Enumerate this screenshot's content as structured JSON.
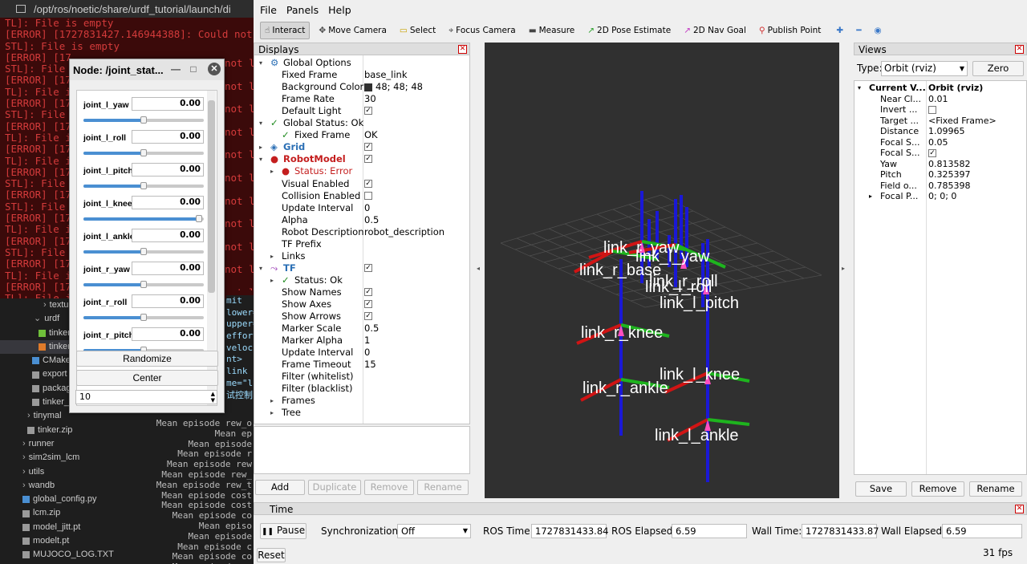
{
  "terminal": {
    "title_path": "/opt/ros/noetic/share/urdf_tutorial/launch/di",
    "lines": [
      "TL]: File is empty",
      "[ERROR] [1727831427.146944388]: Could not l",
      "STL]: File is empty",
      "[ERROR] [17",
      "STL]: File i",
      "[ERROR] [17",
      "TL]: File i",
      "[ERROR] [17",
      "STL]: File i",
      "[ERROR] [17",
      "TL]: File i",
      "[ERROR] [17",
      "TL]: File i",
      "[ERROR] [17",
      "STL]: File i",
      "[ERROR] [17",
      "STL]: File i",
      "[ERROR] [17",
      "TL]: File i",
      "[ERROR] [17",
      "STL]: File i",
      "[ERROR] [17",
      "TL]: File is empty",
      "[ERROR] [17",
      "TL]: File is empty"
    ],
    "right_lines": [
      "not l",
      "not l",
      "not l",
      "not l",
      "not l",
      "not l",
      "not l",
      "not l",
      "not l",
      "not l",
      "not l"
    ]
  },
  "explorer": {
    "items": [
      {
        "label": "textur",
        "indent": 54,
        "icon": "chevron"
      },
      {
        "label": "urdf",
        "indent": 42,
        "icon": "chevron-down"
      },
      {
        "label": "tinker",
        "indent": 48,
        "icon": "file-green"
      },
      {
        "label": "tinker",
        "indent": 48,
        "icon": "file-orange"
      },
      {
        "label": "CMake",
        "indent": 40,
        "icon": "file-blue"
      },
      {
        "label": "export",
        "indent": 40,
        "icon": "file"
      },
      {
        "label": "packag",
        "indent": 40,
        "icon": "file"
      },
      {
        "label": "tinker_",
        "indent": 40,
        "icon": "file"
      },
      {
        "label": "tinymal",
        "indent": 34,
        "icon": "chevron"
      },
      {
        "label": "tinker.zip",
        "indent": 34,
        "icon": "file"
      },
      {
        "label": "runner",
        "indent": 28,
        "icon": "chevron"
      },
      {
        "label": "sim2sim_lcm",
        "indent": 28,
        "icon": "chevron"
      },
      {
        "label": "utils",
        "indent": 28,
        "icon": "chevron"
      },
      {
        "label": "wandb",
        "indent": 28,
        "icon": "chevron"
      },
      {
        "label": "global_config.py",
        "indent": 28,
        "icon": "file-blue"
      },
      {
        "label": "lcm.zip",
        "indent": 28,
        "icon": "file"
      },
      {
        "label": "model_jitt.pt",
        "indent": 28,
        "icon": "file"
      },
      {
        "label": "modelt.pt",
        "indent": 28,
        "icon": "file"
      },
      {
        "label": "MUJOCO_LOG.TXT",
        "indent": 28,
        "icon": "file"
      }
    ]
  },
  "code_top": [
    "mit",
    "lower=",
    "upper=",
    "effort",
    "veloci",
    "nt>",
    "link",
    "me=\"li",
    "试控制台"
  ],
  "code_lines": [
    "Mean episode rew_o",
    "Mean ep",
    "Mean episode",
    "Mean episode r",
    "Mean episode rew",
    "Mean episode rew_",
    "Mean episode rew_t",
    "Mean episode cost",
    "Mean episode cost",
    "Mean episode co",
    "Mean episo",
    "Mean episode",
    "Mean episode c",
    "Mean episode co",
    "Mean episode co"
  ],
  "node": {
    "title": "Node: /joint_stat...",
    "joints": [
      {
        "name": "joint_l_yaw",
        "value": "0.00",
        "level": 0.5
      },
      {
        "name": "joint_l_roll",
        "value": "0.00",
        "level": 0.5
      },
      {
        "name": "joint_l_pitch",
        "value": "0.00",
        "level": 0.5
      },
      {
        "name": "joint_l_knee",
        "value": "0.00",
        "level": 0.96
      },
      {
        "name": "joint_l_ankle",
        "value": "0.00",
        "level": 0.5
      },
      {
        "name": "joint_r_yaw",
        "value": "0.00",
        "level": 0.5
      },
      {
        "name": "joint_r_roll",
        "value": "0.00",
        "level": 0.5
      },
      {
        "name": "joint_r_pitch",
        "value": "0.00",
        "level": 0.5
      }
    ],
    "randomize_label": "Randomize",
    "center_label": "Center",
    "spin_value": "10"
  },
  "rviz": {
    "menu": [
      "File",
      "Panels",
      "Help"
    ],
    "tools": [
      {
        "label": "Interact",
        "icon": "hand-icon"
      },
      {
        "label": "Move Camera",
        "icon": "move-icon"
      },
      {
        "label": "Select",
        "icon": "select-icon"
      },
      {
        "label": "Focus Camera",
        "icon": "focus-icon"
      },
      {
        "label": "Measure",
        "icon": "ruler-icon"
      },
      {
        "label": "2D Pose Estimate",
        "icon": "green-arrow-icon"
      },
      {
        "label": "2D Nav Goal",
        "icon": "pink-arrow-icon"
      },
      {
        "label": "Publish Point",
        "icon": "pin-icon"
      }
    ],
    "displays_title": "Displays",
    "displays": [
      {
        "k": "Global Options",
        "v": "",
        "indent": 20,
        "exp": "▾",
        "icon": "gear"
      },
      {
        "k": "Fixed Frame",
        "v": "base_link",
        "indent": 34
      },
      {
        "k": "Background Color",
        "v": "48; 48; 48",
        "indent": 34,
        "swatch": true
      },
      {
        "k": "Frame Rate",
        "v": "30",
        "indent": 34
      },
      {
        "k": "Default Light",
        "v": "",
        "indent": 34,
        "check": true
      },
      {
        "k": "Global Status: Ok",
        "v": "",
        "indent": 20,
        "exp": "▾",
        "icon": "ok"
      },
      {
        "k": "Fixed Frame",
        "v": "OK",
        "indent": 34,
        "icon": "ok"
      },
      {
        "k": "Grid",
        "v": "",
        "indent": 20,
        "exp": "▸",
        "icon": "grid",
        "style": "blue",
        "check": true
      },
      {
        "k": "RobotModel",
        "v": "",
        "indent": 20,
        "exp": "▾",
        "icon": "err",
        "style": "red",
        "check": true
      },
      {
        "k": "Status: Error",
        "v": "",
        "indent": 34,
        "exp": "▸",
        "icon": "err",
        "style": "errtxt"
      },
      {
        "k": "Visual Enabled",
        "v": "",
        "indent": 34,
        "check": true
      },
      {
        "k": "Collision Enabled",
        "v": "",
        "indent": 34,
        "check": false
      },
      {
        "k": "Update Interval",
        "v": "0",
        "indent": 34
      },
      {
        "k": "Alpha",
        "v": "0.5",
        "indent": 34
      },
      {
        "k": "Robot Description",
        "v": "robot_description",
        "indent": 34
      },
      {
        "k": "TF Prefix",
        "v": "",
        "indent": 34
      },
      {
        "k": "Links",
        "v": "",
        "indent": 34,
        "exp": "▸"
      },
      {
        "k": "TF",
        "v": "",
        "indent": 20,
        "exp": "▾",
        "icon": "tf",
        "style": "blue",
        "check": true
      },
      {
        "k": "Status: Ok",
        "v": "",
        "indent": 34,
        "exp": "▸",
        "icon": "ok"
      },
      {
        "k": "Show Names",
        "v": "",
        "indent": 34,
        "check": true
      },
      {
        "k": "Show Axes",
        "v": "",
        "indent": 34,
        "check": true
      },
      {
        "k": "Show Arrows",
        "v": "",
        "indent": 34,
        "check": true
      },
      {
        "k": "Marker Scale",
        "v": "0.5",
        "indent": 34
      },
      {
        "k": "Marker Alpha",
        "v": "1",
        "indent": 34
      },
      {
        "k": "Update Interval",
        "v": "0",
        "indent": 34
      },
      {
        "k": "Frame Timeout",
        "v": "15",
        "indent": 34
      },
      {
        "k": "Filter (whitelist)",
        "v": "",
        "indent": 34
      },
      {
        "k": "Filter (blacklist)",
        "v": "",
        "indent": 34
      },
      {
        "k": "Frames",
        "v": "",
        "indent": 34,
        "exp": "▸"
      },
      {
        "k": "Tree",
        "v": "",
        "indent": 34,
        "exp": "▸"
      }
    ],
    "display_buttons": {
      "add": "Add",
      "duplicate": "Duplicate",
      "remove": "Remove",
      "rename": "Rename"
    },
    "frame_labels": [
      {
        "text": "link_l_yaw"
      },
      {
        "text": "link_r_yaw"
      },
      {
        "text": "link_r_base"
      },
      {
        "text": "link_l_roll"
      },
      {
        "text": "link_r_roll"
      },
      {
        "text": "link_l_pitch"
      },
      {
        "text": "link_r_knee"
      },
      {
        "text": "link_l_knee"
      },
      {
        "text": "link_r_ankle"
      },
      {
        "text": "link_l_ankle"
      }
    ],
    "views_title": "Views",
    "views_type_label": "Type:",
    "views_type_value": "Orbit (rviz)",
    "views_zero": "Zero",
    "views_rows": [
      {
        "k": "Current V...",
        "v": "Orbit (rviz)",
        "bold": true,
        "exp": "▾",
        "indent": 4
      },
      {
        "k": "Near Cl...",
        "v": "0.01",
        "indent": 18
      },
      {
        "k": "Invert ...",
        "v": "",
        "indent": 18,
        "check": false
      },
      {
        "k": "Target ...",
        "v": "<Fixed Frame>",
        "indent": 18
      },
      {
        "k": "Distance",
        "v": "1.09965",
        "indent": 18
      },
      {
        "k": "Focal S...",
        "v": "0.05",
        "indent": 18
      },
      {
        "k": "Focal S...",
        "v": "",
        "indent": 18,
        "check": true
      },
      {
        "k": "Yaw",
        "v": "0.813582",
        "indent": 18
      },
      {
        "k": "Pitch",
        "v": "0.325397",
        "indent": 18
      },
      {
        "k": "Field o...",
        "v": "0.785398",
        "indent": 18
      },
      {
        "k": "Focal P...",
        "v": "0; 0; 0",
        "indent": 18,
        "exp": "▸"
      }
    ],
    "views_buttons": {
      "save": "Save",
      "remove": "Remove",
      "rename": "Rename"
    },
    "time": {
      "title": "Time",
      "pause": "Pause",
      "sync_label": "Synchronization:",
      "sync_value": "Off",
      "ros_time_label": "ROS Time:",
      "ros_time": "1727831433.84",
      "ros_elapsed_label": "ROS Elapsed:",
      "ros_elapsed": "6.59",
      "wall_time_label": "Wall Time:",
      "wall_time": "1727831433.87",
      "wall_elapsed_label": "Wall Elapsed:",
      "wall_elapsed": "6.59",
      "reset": "Reset",
      "fps": "31 fps"
    }
  }
}
